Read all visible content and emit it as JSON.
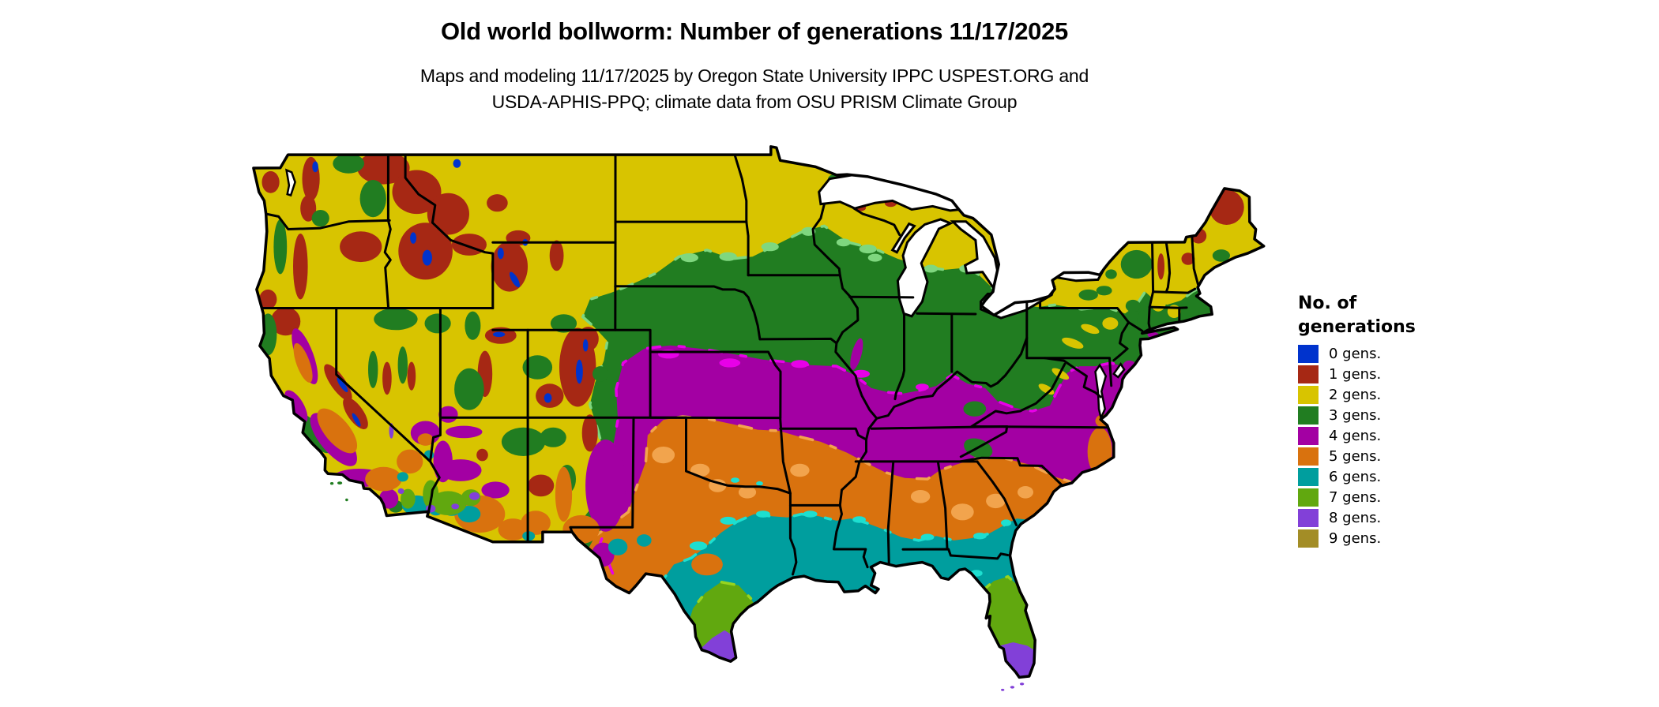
{
  "title": "Old world bollworm: Number of generations 11/17/2025",
  "subtitle": {
    "line1": "Maps and modeling 11/17/2025 by Oregon State University IPPC USPEST.ORG and",
    "line2": "USDA-APHIS-PPQ; climate data from OSU PRISM Climate Group"
  },
  "legend": {
    "title_line1": "No. of",
    "title_line2": "generations",
    "items": [
      {
        "gen": 0,
        "label": "0 gens.",
        "color": "#0033cd"
      },
      {
        "gen": 1,
        "label": "1 gens.",
        "color": "#a62814"
      },
      {
        "gen": 2,
        "label": "2 gens.",
        "color": "#d8c400"
      },
      {
        "gen": 3,
        "label": "3 gens.",
        "color": "#217d21"
      },
      {
        "gen": 4,
        "label": "4 gens.",
        "color": "#a300a3"
      },
      {
        "gen": 5,
        "label": "5 gens.",
        "color": "#d9720e"
      },
      {
        "gen": 6,
        "label": "6 gens.",
        "color": "#009e9e"
      },
      {
        "gen": 7,
        "label": "7 gens.",
        "color": "#61a80f"
      },
      {
        "gen": 8,
        "label": "8 gens.",
        "color": "#8240d8"
      },
      {
        "gen": 9,
        "label": "9 gens.",
        "color": "#a38d26"
      }
    ]
  },
  "map": {
    "area": "Conterminous United States",
    "style": "pixelated climate raster with black state borders on white background",
    "accents": {
      "light_green": "#7fd77f",
      "bright_magenta": "#e800e8",
      "light_orange": "#f2a44d",
      "bright_cyan": "#1ddfd0",
      "chartreuse_fringe": "#97d41f",
      "state_border": "#000000",
      "water": "#ffffff"
    },
    "bands": [
      {
        "gens": 0,
        "where": "highest peaks: Sierra Nevada, Colorado Rockies, Wind River, Beartooth, North Cascades"
      },
      {
        "gens": 1,
        "where": "northern Rockies, Cascades, Sierra Nevada, Colorado Rockies, northern Maine"
      },
      {
        "gens": 2,
        "where": "northern tier and intermountain West: Montana, Dakotas, Minnesota, Wisconsin, northern Michigan, Great Basin, upstate New York, New England"
      },
      {
        "gens": 3,
        "where": "central belt: Nebraska, Iowa, Illinois, Indiana, Ohio, Pennsylvania, southern New England, mid-elevation West"
      },
      {
        "gens": 4,
        "where": "Kansas, Missouri, Kentucky, Tennessee, Virginia piedmont, eastern New Mexico, California coast ranges"
      },
      {
        "gens": 5,
        "where": "Oklahoma, Arkansas, northern Texas, Mississippi-Alabama-Georgia-South Carolina belt, California Central Valley, southern Arizona"
      },
      {
        "gens": 6,
        "where": "central Texas, Louisiana, Gulf Coast, southern Georgia, northern Florida, Imperial Valley"
      },
      {
        "gens": 7,
        "where": "southern Texas, central Florida, southwest Arizona lowlands"
      },
      {
        "gens": 8,
        "where": "lower Rio Grande valley, south Florida and Keys, Phoenix-Yuma lowlands"
      },
      {
        "gens": 9,
        "where": "legend entry only; not visible on map"
      }
    ]
  }
}
